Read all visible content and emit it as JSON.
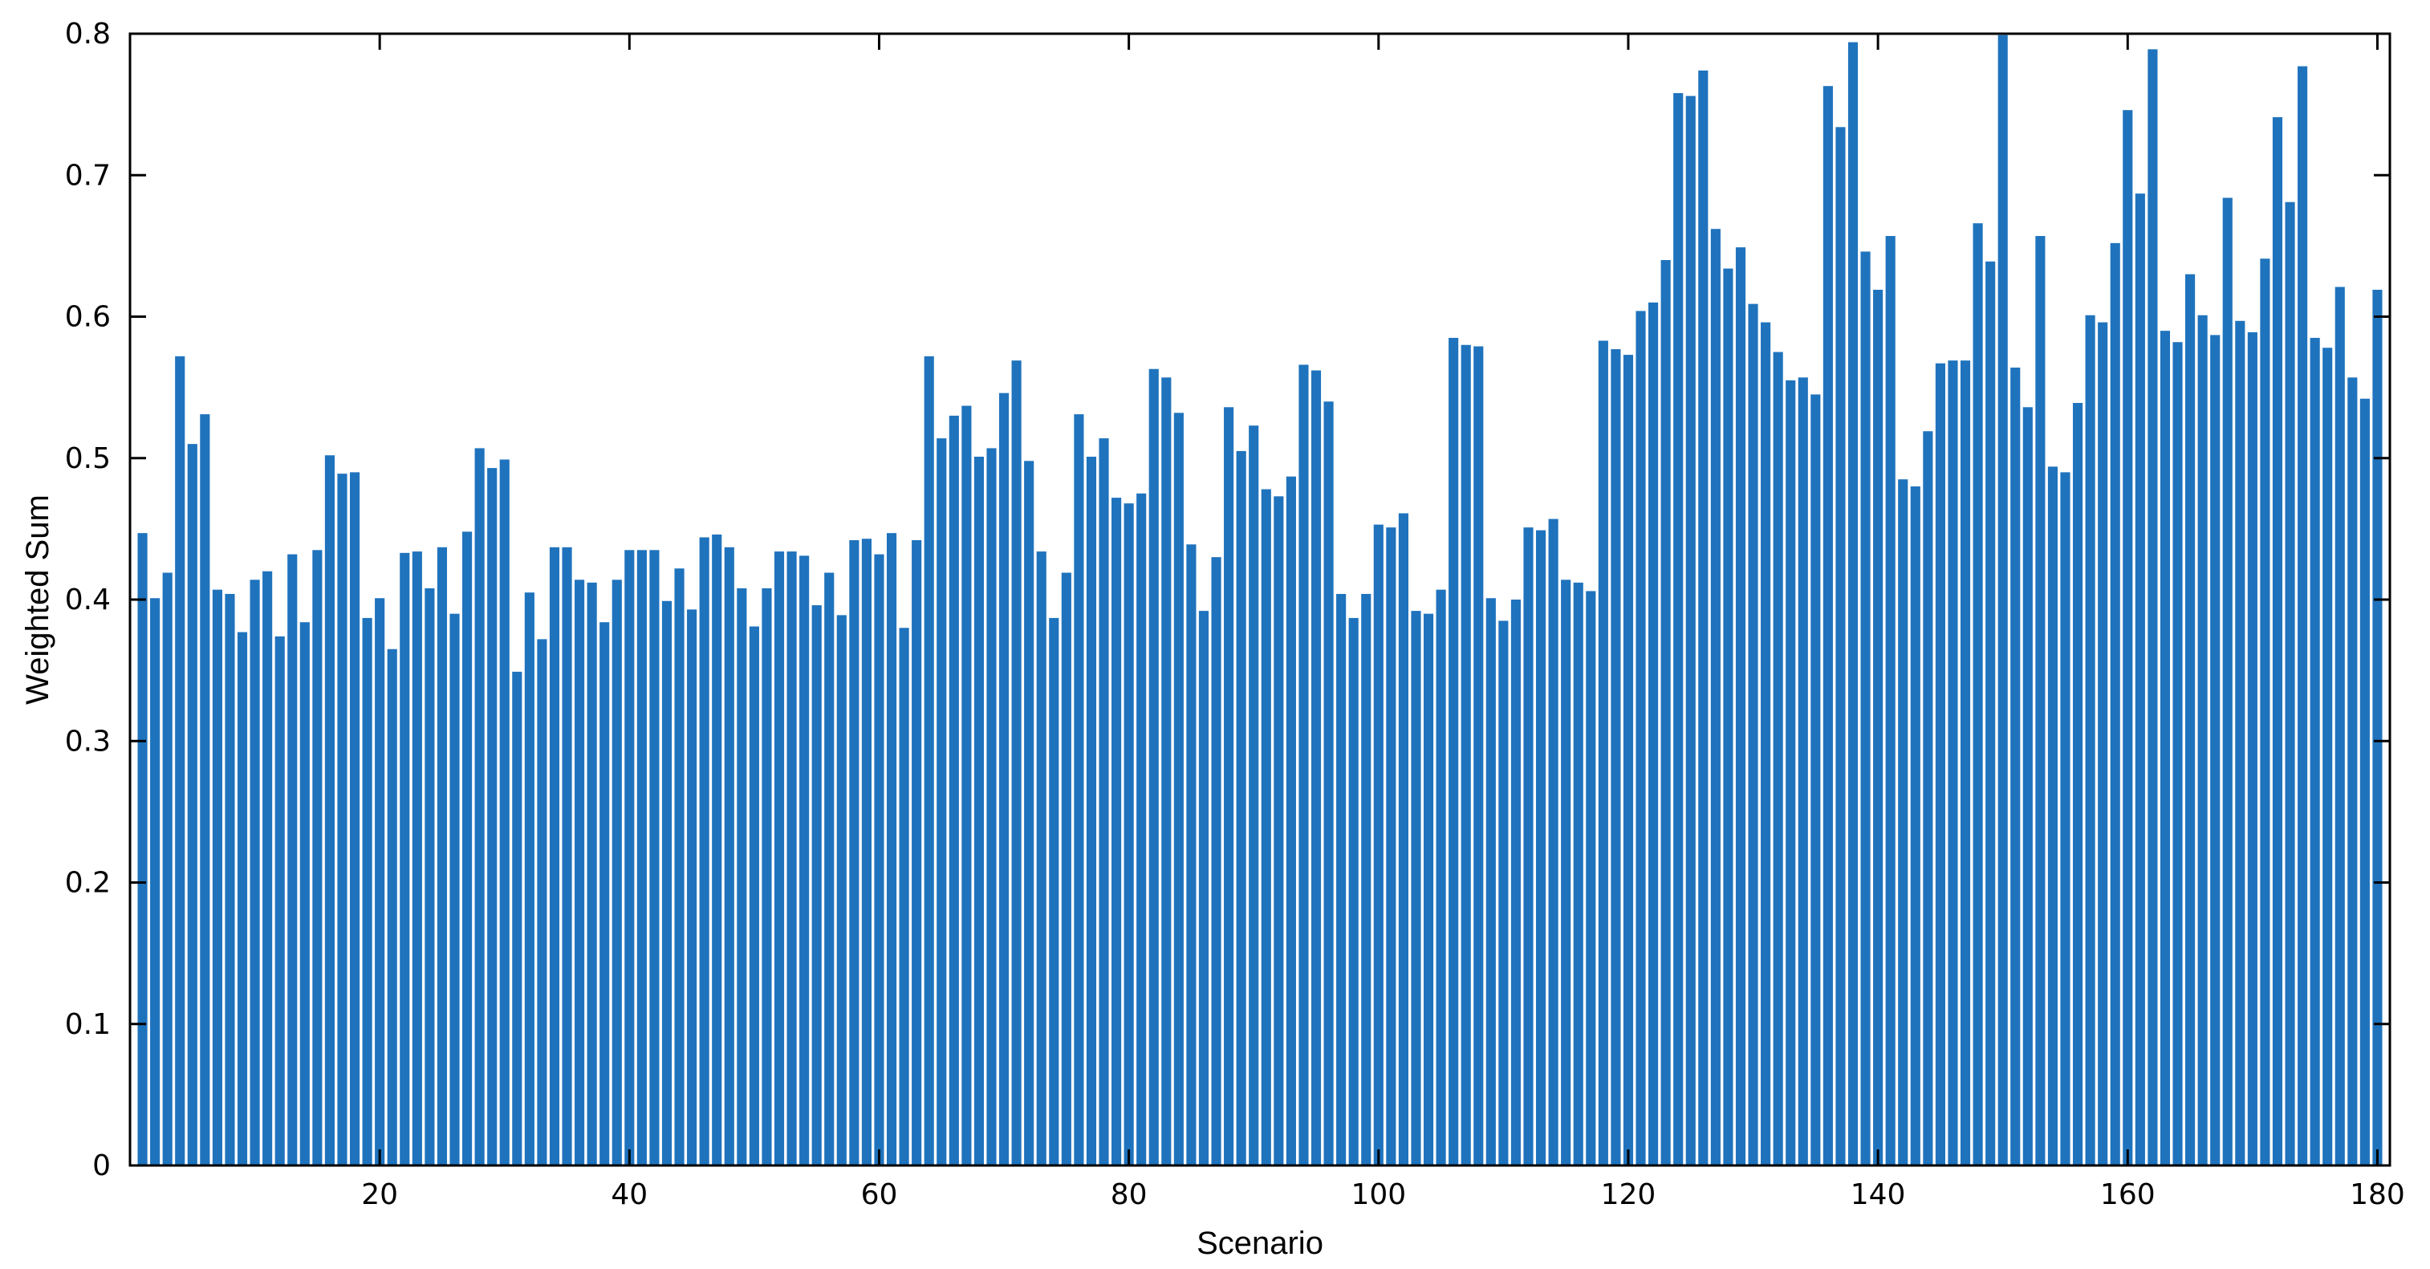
{
  "chart_data": {
    "type": "bar",
    "title": "",
    "xlabel": "Scenario",
    "ylabel": "Weighted Sum",
    "xlim": [
      0,
      181
    ],
    "ylim": [
      0,
      0.8
    ],
    "grid": false,
    "legend": "none",
    "bar_color": "#1f73bd",
    "x_ticks": [
      20,
      40,
      60,
      80,
      100,
      120,
      140,
      160,
      180
    ],
    "y_ticks": [
      0,
      0.1,
      0.2,
      0.3,
      0.4,
      0.5,
      0.6,
      0.7,
      0.8
    ],
    "x_tick_labels": [
      "20",
      "40",
      "60",
      "80",
      "100",
      "120",
      "140",
      "160",
      "180"
    ],
    "y_tick_labels": [
      "0",
      "0.1",
      "0.2",
      "0.3",
      "0.4",
      "0.5",
      "0.6",
      "0.7",
      "0.8"
    ],
    "x": [
      1,
      2,
      3,
      4,
      5,
      6,
      7,
      8,
      9,
      10,
      11,
      12,
      13,
      14,
      15,
      16,
      17,
      18,
      19,
      20,
      21,
      22,
      23,
      24,
      25,
      26,
      27,
      28,
      29,
      30,
      31,
      32,
      33,
      34,
      35,
      36,
      37,
      38,
      39,
      40,
      41,
      42,
      43,
      44,
      45,
      46,
      47,
      48,
      49,
      50,
      51,
      52,
      53,
      54,
      55,
      56,
      57,
      58,
      59,
      60,
      61,
      62,
      63,
      64,
      65,
      66,
      67,
      68,
      69,
      70,
      71,
      72,
      73,
      74,
      75,
      76,
      77,
      78,
      79,
      80,
      81,
      82,
      83,
      84,
      85,
      86,
      87,
      88,
      89,
      90,
      91,
      92,
      93,
      94,
      95,
      96,
      97,
      98,
      99,
      100,
      101,
      102,
      103,
      104,
      105,
      106,
      107,
      108,
      109,
      110,
      111,
      112,
      113,
      114,
      115,
      116,
      117,
      118,
      119,
      120,
      121,
      122,
      123,
      124,
      125,
      126,
      127,
      128,
      129,
      130,
      131,
      132,
      133,
      134,
      135,
      136,
      137,
      138,
      139,
      140,
      141,
      142,
      143,
      144,
      145,
      146,
      147,
      148,
      149,
      150,
      151,
      152,
      153,
      154,
      155,
      156,
      157,
      158,
      159,
      160,
      161,
      162,
      163,
      164,
      165,
      166,
      167,
      168,
      169,
      170,
      171,
      172,
      173,
      174,
      175,
      176,
      177,
      178,
      179,
      180
    ],
    "values": [
      0.447,
      0.401,
      0.419,
      0.572,
      0.51,
      0.531,
      0.407,
      0.404,
      0.377,
      0.414,
      0.42,
      0.374,
      0.432,
      0.384,
      0.435,
      0.502,
      0.489,
      0.49,
      0.387,
      0.401,
      0.365,
      0.433,
      0.434,
      0.408,
      0.437,
      0.39,
      0.448,
      0.507,
      0.493,
      0.499,
      0.349,
      0.405,
      0.372,
      0.437,
      0.437,
      0.414,
      0.412,
      0.384,
      0.414,
      0.435,
      0.435,
      0.435,
      0.399,
      0.422,
      0.393,
      0.444,
      0.446,
      0.437,
      0.408,
      0.381,
      0.408,
      0.434,
      0.434,
      0.431,
      0.396,
      0.419,
      0.389,
      0.442,
      0.443,
      0.432,
      0.447,
      0.38,
      0.442,
      0.572,
      0.514,
      0.53,
      0.537,
      0.501,
      0.507,
      0.546,
      0.569,
      0.498,
      0.434,
      0.387,
      0.419,
      0.531,
      0.501,
      0.514,
      0.472,
      0.468,
      0.475,
      0.563,
      0.557,
      0.532,
      0.439,
      0.392,
      0.43,
      0.536,
      0.505,
      0.523,
      0.478,
      0.473,
      0.487,
      0.566,
      0.562,
      0.54,
      0.404,
      0.387,
      0.404,
      0.453,
      0.451,
      0.461,
      0.392,
      0.39,
      0.407,
      0.585,
      0.58,
      0.579,
      0.401,
      0.385,
      0.4,
      0.451,
      0.449,
      0.457,
      0.414,
      0.412,
      0.406,
      0.583,
      0.577,
      0.573,
      0.604,
      0.61,
      0.64,
      0.758,
      0.756,
      0.774,
      0.662,
      0.634,
      0.649,
      0.609,
      0.596,
      0.575,
      0.555,
      0.557,
      0.545,
      0.763,
      0.734,
      0.794,
      0.646,
      0.619,
      0.657,
      0.485,
      0.48,
      0.519,
      0.567,
      0.569,
      0.569,
      0.666,
      0.639,
      0.799,
      0.564,
      0.536,
      0.657,
      0.494,
      0.49,
      0.539,
      0.601,
      0.596,
      0.652,
      0.746,
      0.687,
      0.789,
      0.59,
      0.582,
      0.63,
      0.601,
      0.587,
      0.684,
      0.597,
      0.589,
      0.641,
      0.741,
      0.681,
      0.777,
      0.585,
      0.578,
      0.621,
      0.557,
      0.542,
      0.619
    ]
  }
}
